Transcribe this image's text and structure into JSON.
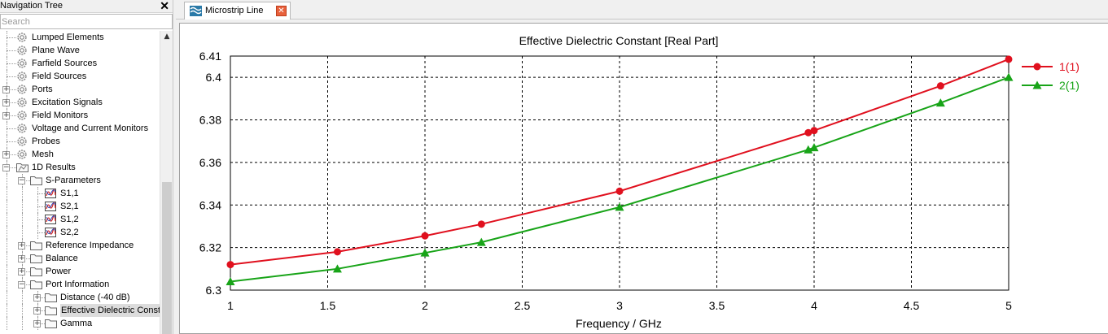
{
  "nav": {
    "title": "Navigation Tree",
    "close": "✕",
    "search_placeholder": "Search",
    "items": [
      {
        "label": "Lumped Elements",
        "icon": "gear-icon",
        "level": 0,
        "expander": false
      },
      {
        "label": "Plane Wave",
        "icon": "gear-icon",
        "level": 0,
        "expander": false
      },
      {
        "label": "Farfield Sources",
        "icon": "gear-icon",
        "level": 0,
        "expander": false
      },
      {
        "label": "Field Sources",
        "icon": "gear-icon",
        "level": 0,
        "expander": false
      },
      {
        "label": "Ports",
        "icon": "gear-icon",
        "level": 0,
        "expander": "+"
      },
      {
        "label": "Excitation Signals",
        "icon": "gear-icon",
        "level": 0,
        "expander": "+"
      },
      {
        "label": "Field Monitors",
        "icon": "gear-icon",
        "level": 0,
        "expander": "+"
      },
      {
        "label": "Voltage and Current Monitors",
        "icon": "gear-icon",
        "level": 0,
        "expander": false
      },
      {
        "label": "Probes",
        "icon": "gear-icon",
        "level": 0,
        "expander": false
      },
      {
        "label": "Mesh",
        "icon": "gear-icon",
        "level": 0,
        "expander": "+"
      },
      {
        "label": "1D Results",
        "icon": "result-folder-icon",
        "level": 0,
        "expander": "−"
      },
      {
        "label": "S-Parameters",
        "icon": "folder-icon",
        "level": 1,
        "expander": "−"
      },
      {
        "label": "S1,1",
        "icon": "result-icon",
        "level": 2,
        "expander": false
      },
      {
        "label": "S2,1",
        "icon": "result-icon",
        "level": 2,
        "expander": false
      },
      {
        "label": "S1,2",
        "icon": "result-icon",
        "level": 2,
        "expander": false
      },
      {
        "label": "S2,2",
        "icon": "result-icon",
        "level": 2,
        "expander": false
      },
      {
        "label": "Reference Impedance",
        "icon": "folder-icon",
        "level": 1,
        "expander": "+"
      },
      {
        "label": "Balance",
        "icon": "folder-icon",
        "level": 1,
        "expander": "+"
      },
      {
        "label": "Power",
        "icon": "folder-icon",
        "level": 1,
        "expander": "+"
      },
      {
        "label": "Port Information",
        "icon": "folder-icon",
        "level": 1,
        "expander": "−"
      },
      {
        "label": "Distance (-40 dB)",
        "icon": "folder-icon",
        "level": 2,
        "expander": "+"
      },
      {
        "label": "Effective Dielectric Const",
        "icon": "folder-icon",
        "level": 2,
        "expander": "+",
        "selected": true
      },
      {
        "label": "Gamma",
        "icon": "folder-icon",
        "level": 2,
        "expander": "+"
      }
    ]
  },
  "tabs": [
    {
      "label": "Microstrip Line",
      "icon": "waves-icon",
      "close": "✕",
      "active": true
    }
  ],
  "colors": {
    "series1": "#e0101e",
    "series2": "#18a418",
    "grid": "#000000"
  },
  "chart_data": {
    "type": "line",
    "title": "Effective Dielectric Constant [Real Part]",
    "xlabel": "Frequency / GHz",
    "ylabel": "",
    "xlim": [
      1,
      5
    ],
    "ylim": [
      6.3,
      6.41
    ],
    "x_ticks": [
      "1",
      "1.5",
      "2",
      "2.5",
      "3",
      "3.5",
      "4",
      "4.5",
      "5"
    ],
    "y_ticks": [
      "6.3",
      "6.32",
      "6.34",
      "6.36",
      "6.38",
      "6.4",
      "6.41"
    ],
    "grid": true,
    "legend_position": "right",
    "series": [
      {
        "name": "1(1)",
        "marker": "circle",
        "color": "#e0101e",
        "x": [
          1,
          1.55,
          2,
          2.29,
          3,
          3.97,
          4,
          4.65,
          5
        ],
        "y": [
          6.312,
          6.318,
          6.3255,
          6.331,
          6.3465,
          6.374,
          6.375,
          6.396,
          6.4085
        ],
        "marker_x": [
          1,
          1.55,
          2,
          2.29,
          3,
          3.97,
          4,
          4.65,
          5
        ]
      },
      {
        "name": "2(1)",
        "marker": "triangle",
        "color": "#18a418",
        "x": [
          1,
          1.55,
          2,
          2.29,
          3,
          3.97,
          4,
          4.65,
          5
        ],
        "y": [
          6.304,
          6.31,
          6.3175,
          6.3225,
          6.339,
          6.366,
          6.367,
          6.388,
          6.4
        ],
        "marker_x": [
          1,
          1.55,
          2,
          2.29,
          3,
          3.97,
          4,
          4.65,
          5
        ]
      }
    ]
  }
}
